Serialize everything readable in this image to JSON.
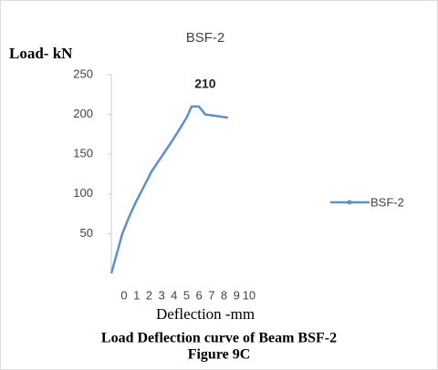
{
  "chart_data": {
    "type": "line",
    "title": "BSF-2",
    "y_label": "Load- kN",
    "x_label": "Deflection -mm",
    "caption": "Load Deflection curve of Beam BSF-2",
    "figure_label": "Figure 9C",
    "x": [
      0,
      0.44,
      0.88,
      1.39,
      1.97,
      2.63,
      3.21,
      3.94,
      4.67,
      5.4,
      6.06,
      6.42,
      7.01,
      7.52,
      8.47,
      9.34
    ],
    "series": [
      {
        "name": "BSF-2",
        "color": "#5b8fd6",
        "values": [
          0,
          25,
          50,
          70,
          90,
          110,
          128,
          145,
          162,
          180,
          197,
          210,
          210,
          200,
          198,
          196
        ]
      }
    ],
    "xlim": [
      0,
      13
    ],
    "xticks": [
      0,
      1,
      2,
      3,
      4,
      5,
      6,
      7,
      8,
      9,
      10
    ],
    "ylim": [
      0,
      250
    ],
    "yticks": [
      50,
      100,
      150,
      200,
      250
    ],
    "annotations": [
      {
        "text": "210",
        "x": 6.42,
        "y": 210
      }
    ],
    "legend": "right"
  }
}
